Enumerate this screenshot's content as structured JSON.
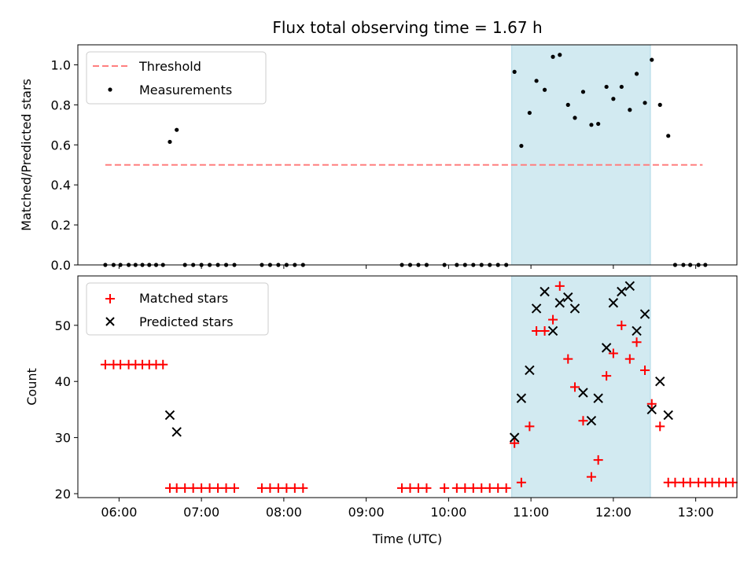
{
  "chart_data": [
    {
      "type": "scatter",
      "panel": "top",
      "title": "Flux total observing time = 1.67 h",
      "xlabel": "",
      "ylabel": "Matched/Predicted stars",
      "xlim": [
        "05:30",
        "13:30"
      ],
      "ylim": [
        0,
        1.1
      ],
      "yticks": [
        "0.0",
        "0.2",
        "0.4",
        "0.6",
        "0.8",
        "1.0"
      ],
      "grid": false,
      "legend_position": "top-left",
      "shaded_region": {
        "x0": "10:46",
        "x1": "12:27",
        "color": "#add8e6"
      },
      "threshold": {
        "name": "Threshold",
        "y": 0.5,
        "x0": "05:50",
        "x1": "13:05",
        "color": "#ff7f7f"
      },
      "series": [
        {
          "name": "Measurements",
          "color": "#000000",
          "marker": "dot",
          "x": [
            "05:50",
            "05:56",
            "06:01",
            "06:07",
            "06:12",
            "06:17",
            "06:22",
            "06:27",
            "06:32",
            "06:37",
            "06:42",
            "06:48",
            "06:54",
            "07:00",
            "07:06",
            "07:12",
            "07:18",
            "07:24",
            "07:44",
            "07:50",
            "07:56",
            "08:02",
            "08:08",
            "08:14",
            "09:26",
            "09:32",
            "09:38",
            "09:44",
            "09:57",
            "10:06",
            "10:12",
            "10:18",
            "10:24",
            "10:30",
            "10:36",
            "10:42",
            "10:48",
            "10:53",
            "10:59",
            "11:04",
            "11:10",
            "11:16",
            "11:21",
            "11:27",
            "11:32",
            "11:38",
            "11:44",
            "11:49",
            "11:55",
            "12:00",
            "12:06",
            "12:12",
            "12:17",
            "12:23",
            "12:28",
            "12:34",
            "12:40",
            "12:45",
            "12:51",
            "12:56",
            "13:02",
            "13:07"
          ],
          "values": [
            0,
            0,
            0,
            0,
            0,
            0,
            0,
            0,
            0,
            0.615,
            0.675,
            0,
            0,
            0,
            0,
            0,
            0,
            0,
            0,
            0,
            0,
            0,
            0,
            0,
            0,
            0,
            0,
            0,
            0,
            0,
            0,
            0,
            0,
            0,
            0,
            0,
            0.965,
            0.595,
            0.76,
            0.92,
            0.875,
            1.04,
            1.05,
            0.8,
            0.735,
            0.865,
            0.7,
            0.705,
            0.89,
            0.83,
            0.89,
            0.775,
            0.955,
            0.81,
            1.025,
            0.8,
            0.645,
            0,
            0,
            0,
            0,
            0
          ]
        }
      ]
    },
    {
      "type": "scatter",
      "panel": "bottom",
      "title": "",
      "xlabel": "Time (UTC)",
      "ylabel": "Count",
      "xlim": [
        "05:30",
        "13:30"
      ],
      "ylim": [
        19.3,
        58.8
      ],
      "xticks": [
        "06:00",
        "07:00",
        "08:00",
        "09:00",
        "10:00",
        "11:00",
        "12:00",
        "13:00"
      ],
      "yticks": [
        "20",
        "30",
        "40",
        "50"
      ],
      "grid": false,
      "legend_position": "top-left",
      "shaded_region": {
        "x0": "10:46",
        "x1": "12:27",
        "color": "#add8e6"
      },
      "series": [
        {
          "name": "Matched stars",
          "color": "#ff0000",
          "marker": "plus",
          "points": [
            [
              "05:50",
              43
            ],
            [
              "05:56",
              43
            ],
            [
              "06:01",
              43
            ],
            [
              "06:07",
              43
            ],
            [
              "06:12",
              43
            ],
            [
              "06:17",
              43
            ],
            [
              "06:22",
              43
            ],
            [
              "06:27",
              43
            ],
            [
              "06:32",
              43
            ],
            [
              "06:37",
              21
            ],
            [
              "06:42",
              21
            ],
            [
              "06:48",
              21
            ],
            [
              "06:54",
              21
            ],
            [
              "07:00",
              21
            ],
            [
              "07:06",
              21
            ],
            [
              "07:12",
              21
            ],
            [
              "07:18",
              21
            ],
            [
              "07:24",
              21
            ],
            [
              "07:44",
              21
            ],
            [
              "07:50",
              21
            ],
            [
              "07:56",
              21
            ],
            [
              "08:02",
              21
            ],
            [
              "08:08",
              21
            ],
            [
              "08:14",
              21
            ],
            [
              "09:26",
              21
            ],
            [
              "09:32",
              21
            ],
            [
              "09:38",
              21
            ],
            [
              "09:44",
              21
            ],
            [
              "09:57",
              21
            ],
            [
              "10:06",
              21
            ],
            [
              "10:12",
              21
            ],
            [
              "10:18",
              21
            ],
            [
              "10:24",
              21
            ],
            [
              "10:30",
              21
            ],
            [
              "10:36",
              21
            ],
            [
              "10:42",
              21
            ],
            [
              "10:48",
              29
            ],
            [
              "10:53",
              22
            ],
            [
              "10:59",
              32
            ],
            [
              "11:04",
              49
            ],
            [
              "11:10",
              49
            ],
            [
              "11:16",
              51
            ],
            [
              "11:21",
              57
            ],
            [
              "11:27",
              44
            ],
            [
              "11:32",
              39
            ],
            [
              "11:38",
              33
            ],
            [
              "11:44",
              23
            ],
            [
              "11:49",
              26
            ],
            [
              "11:55",
              41
            ],
            [
              "12:00",
              45
            ],
            [
              "12:06",
              50
            ],
            [
              "12:12",
              44
            ],
            [
              "12:17",
              47
            ],
            [
              "12:23",
              42
            ],
            [
              "12:28",
              36
            ],
            [
              "12:34",
              32
            ],
            [
              "12:40",
              22
            ],
            [
              "12:45",
              22
            ],
            [
              "12:51",
              22
            ],
            [
              "12:56",
              22
            ],
            [
              "13:02",
              22
            ],
            [
              "13:07",
              22
            ],
            [
              "13:12",
              22
            ],
            [
              "13:17",
              22
            ],
            [
              "13:22",
              22
            ],
            [
              "13:27",
              22
            ]
          ]
        },
        {
          "name": "Predicted stars",
          "color": "#000000",
          "marker": "x",
          "points": [
            [
              "06:37",
              34
            ],
            [
              "06:42",
              31
            ],
            [
              "10:48",
              30
            ],
            [
              "10:53",
              37
            ],
            [
              "10:59",
              42
            ],
            [
              "11:04",
              53
            ],
            [
              "11:10",
              56
            ],
            [
              "11:16",
              49
            ],
            [
              "11:21",
              54
            ],
            [
              "11:27",
              55
            ],
            [
              "11:32",
              53
            ],
            [
              "11:38",
              38
            ],
            [
              "11:44",
              33
            ],
            [
              "11:49",
              37
            ],
            [
              "11:55",
              46
            ],
            [
              "12:00",
              54
            ],
            [
              "12:06",
              56
            ],
            [
              "12:12",
              57
            ],
            [
              "12:17",
              49
            ],
            [
              "12:23",
              52
            ],
            [
              "12:28",
              35
            ],
            [
              "12:34",
              40
            ],
            [
              "12:40",
              34
            ]
          ]
        }
      ]
    }
  ]
}
